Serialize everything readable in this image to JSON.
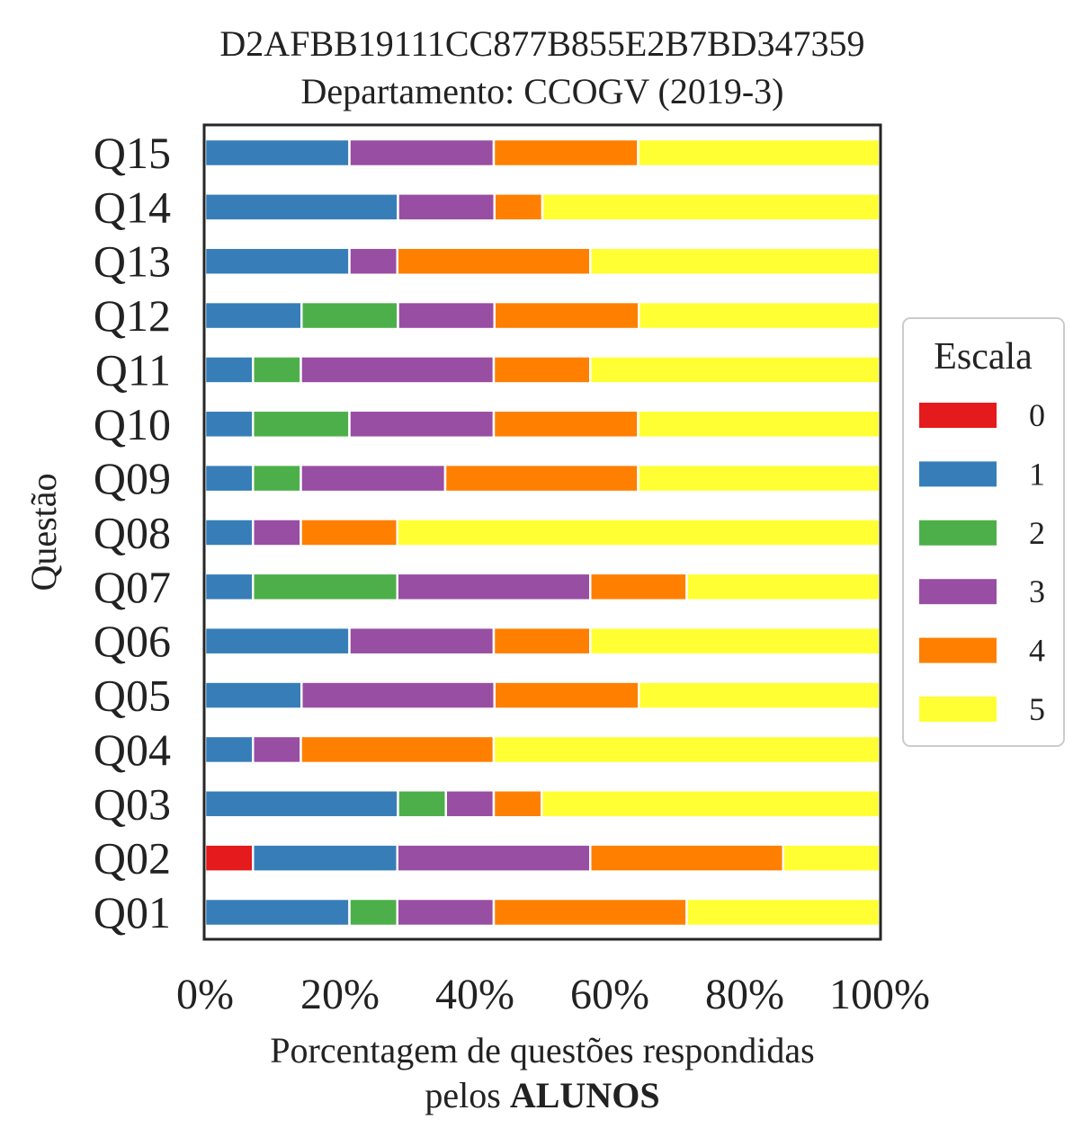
{
  "chart_data": {
    "type": "bar",
    "orientation": "horizontal",
    "stacked": true,
    "title": "D2AFBB19111CC877B855E2B7BD347359",
    "subtitle": "Departamento: CCOGV (2019-3)",
    "ylabel": "Questão",
    "xlabel": "Porcentagem de questões respondidas",
    "xlabel_line2_prefix": "pelos",
    "xlabel_line2_bold": "ALUNOS",
    "xlim": [
      0,
      100
    ],
    "xticks": [
      "0%",
      "20%",
      "40%",
      "60%",
      "80%",
      "100%"
    ],
    "categories": [
      "Q01",
      "Q02",
      "Q03",
      "Q04",
      "Q05",
      "Q06",
      "Q07",
      "Q08",
      "Q09",
      "Q10",
      "Q11",
      "Q12",
      "Q13",
      "Q14",
      "Q15"
    ],
    "legend": {
      "title": "Escala",
      "placement": "center-right"
    },
    "series": [
      {
        "name": "0",
        "color": "#e41a1c",
        "values": [
          0,
          7.1,
          0,
          0,
          0,
          0,
          0,
          0,
          0,
          0,
          0,
          0,
          0,
          0,
          0
        ]
      },
      {
        "name": "1",
        "color": "#377eb8",
        "values": [
          21.4,
          21.4,
          28.6,
          7.1,
          14.3,
          21.4,
          7.1,
          7.1,
          7.1,
          7.1,
          7.1,
          14.3,
          21.4,
          28.6,
          21.4
        ]
      },
      {
        "name": "2",
        "color": "#4daf4a",
        "values": [
          7.1,
          0,
          7.1,
          0,
          0,
          0,
          21.4,
          0,
          7.1,
          14.3,
          7.1,
          14.3,
          0,
          0,
          0
        ]
      },
      {
        "name": "3",
        "color": "#984ea3",
        "values": [
          14.3,
          28.6,
          7.1,
          7.1,
          28.6,
          21.4,
          28.6,
          7.1,
          21.4,
          21.4,
          28.6,
          14.3,
          7.1,
          14.3,
          21.4
        ]
      },
      {
        "name": "4",
        "color": "#ff7f00",
        "values": [
          28.6,
          28.6,
          7.1,
          28.6,
          21.4,
          14.3,
          14.3,
          14.3,
          28.6,
          21.4,
          14.3,
          21.4,
          28.6,
          7.1,
          21.4
        ]
      },
      {
        "name": "5",
        "color": "#ffff33",
        "values": [
          28.6,
          14.3,
          50.1,
          57.2,
          35.7,
          42.9,
          28.6,
          71.5,
          35.8,
          35.8,
          42.9,
          35.7,
          42.9,
          50.0,
          35.8
        ]
      }
    ]
  }
}
